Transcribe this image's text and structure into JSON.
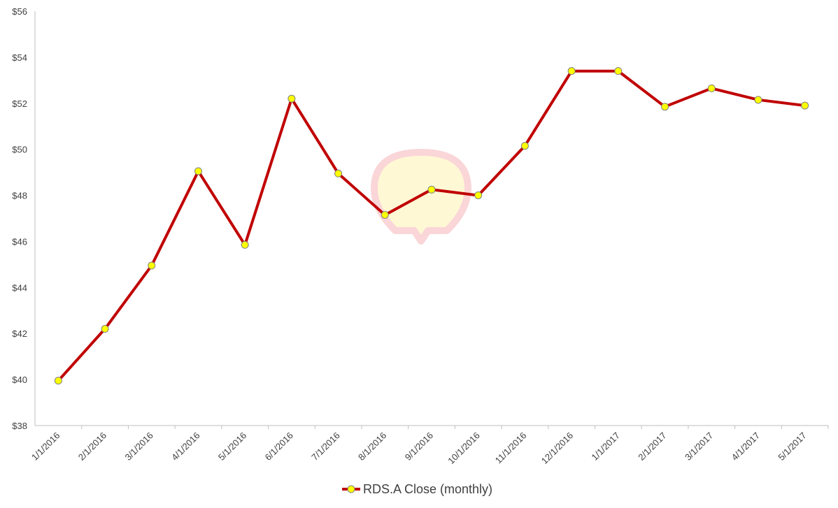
{
  "chart_data": {
    "type": "line",
    "title": "",
    "xlabel": "",
    "ylabel": "",
    "categories": [
      "1/1/2016",
      "2/1/2016",
      "3/1/2016",
      "4/1/2016",
      "5/1/2016",
      "6/1/2016",
      "7/1/2016",
      "8/1/2016",
      "9/1/2016",
      "10/1/2016",
      "11/1/2016",
      "12/1/2016",
      "1/1/2017",
      "2/1/2017",
      "3/1/2017",
      "4/1/2017",
      "5/1/2017"
    ],
    "series": [
      {
        "name": "RDS.A Close (monthly)",
        "values": [
          39.95,
          42.2,
          44.95,
          49.05,
          45.85,
          52.2,
          48.95,
          47.15,
          48.25,
          48.0,
          50.15,
          53.4,
          53.4,
          51.85,
          52.65,
          52.15,
          51.9
        ],
        "line_color": "#C00000",
        "marker_color": "#FFFF00"
      }
    ],
    "ylim": [
      38,
      56
    ],
    "y_ticks": [
      "$38",
      "$40",
      "$42",
      "$44",
      "$46",
      "$48",
      "$50",
      "$52",
      "$54",
      "$56"
    ],
    "grid": false,
    "legend_position": "bottom"
  }
}
